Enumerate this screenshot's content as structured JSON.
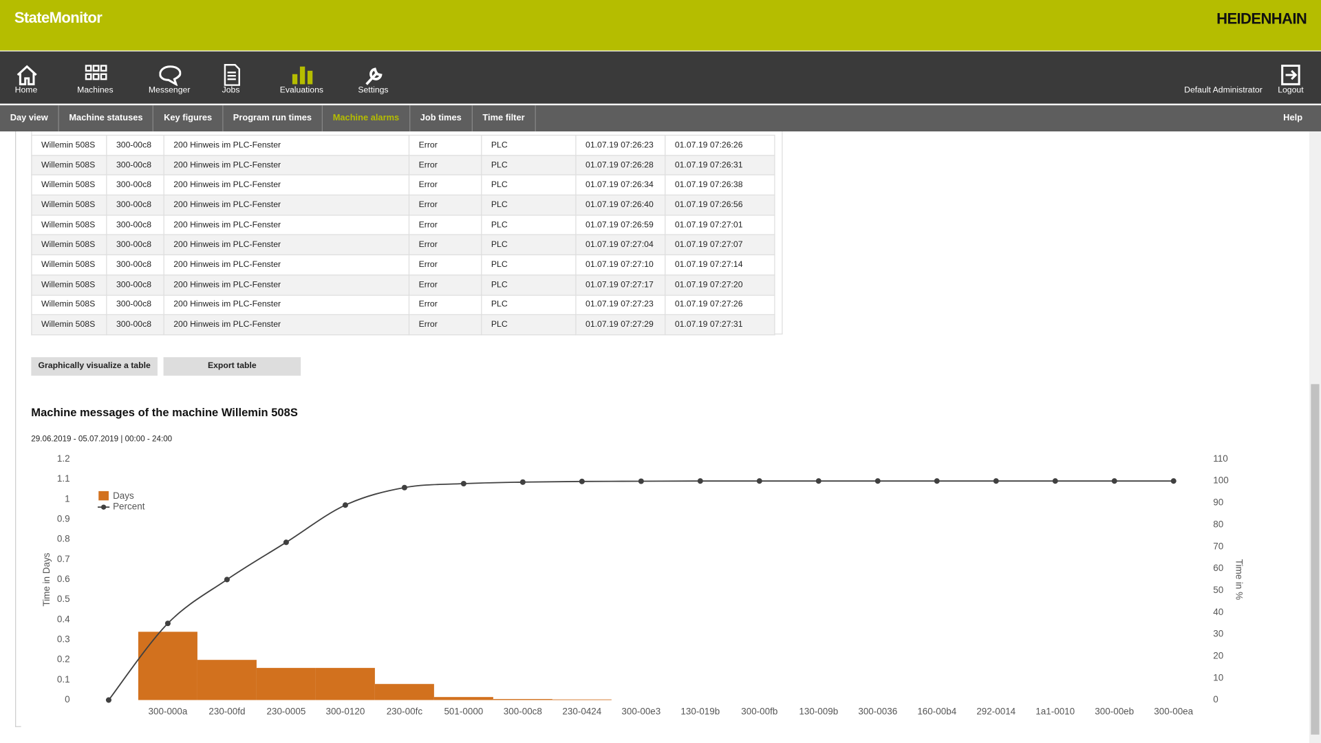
{
  "header": {
    "app_title": "StateMonitor",
    "brand": "HEIDENHAIN"
  },
  "nav": {
    "items": [
      "Home",
      "Machines",
      "Messenger",
      "Jobs",
      "Evaluations",
      "Settings"
    ],
    "active": 4,
    "user": "Default Administrator",
    "logout": "Logout"
  },
  "subnav": {
    "items": [
      "Day view",
      "Machine statuses",
      "Key figures",
      "Program run times",
      "Machine alarms",
      "Job times",
      "Time filter"
    ],
    "active": 4,
    "help": "Help"
  },
  "table": {
    "rows": [
      [
        "Willemin 508S",
        "300-00c8",
        "200 Hinweis im PLC-Fenster",
        "Error",
        "PLC",
        "01.07.19 07:26:23",
        "01.07.19 07:26:26"
      ],
      [
        "Willemin 508S",
        "300-00c8",
        "200 Hinweis im PLC-Fenster",
        "Error",
        "PLC",
        "01.07.19 07:26:28",
        "01.07.19 07:26:31"
      ],
      [
        "Willemin 508S",
        "300-00c8",
        "200 Hinweis im PLC-Fenster",
        "Error",
        "PLC",
        "01.07.19 07:26:34",
        "01.07.19 07:26:38"
      ],
      [
        "Willemin 508S",
        "300-00c8",
        "200 Hinweis im PLC-Fenster",
        "Error",
        "PLC",
        "01.07.19 07:26:40",
        "01.07.19 07:26:56"
      ],
      [
        "Willemin 508S",
        "300-00c8",
        "200 Hinweis im PLC-Fenster",
        "Error",
        "PLC",
        "01.07.19 07:26:59",
        "01.07.19 07:27:01"
      ],
      [
        "Willemin 508S",
        "300-00c8",
        "200 Hinweis im PLC-Fenster",
        "Error",
        "PLC",
        "01.07.19 07:27:04",
        "01.07.19 07:27:07"
      ],
      [
        "Willemin 508S",
        "300-00c8",
        "200 Hinweis im PLC-Fenster",
        "Error",
        "PLC",
        "01.07.19 07:27:10",
        "01.07.19 07:27:14"
      ],
      [
        "Willemin 508S",
        "300-00c8",
        "200 Hinweis im PLC-Fenster",
        "Error",
        "PLC",
        "01.07.19 07:27:17",
        "01.07.19 07:27:20"
      ],
      [
        "Willemin 508S",
        "300-00c8",
        "200 Hinweis im PLC-Fenster",
        "Error",
        "PLC",
        "01.07.19 07:27:23",
        "01.07.19 07:27:26"
      ],
      [
        "Willemin 508S",
        "300-00c8",
        "200 Hinweis im PLC-Fenster",
        "Error",
        "PLC",
        "01.07.19 07:27:29",
        "01.07.19 07:27:31"
      ]
    ]
  },
  "buttons": [
    "Graphically visualize a table",
    "Export table"
  ],
  "chart_data": {
    "type": "bar",
    "title": "Machine messages of the machine Willemin 508S",
    "subtitle": "29.06.2019 - 05.07.2019 | 00:00 - 24:00",
    "y_label": "Time in Days",
    "y2_label": "Time in %",
    "categories": [
      null,
      "300-000a",
      "230-00fd",
      "230-0005",
      "300-0120",
      "230-00fc",
      "501-0000",
      "300-00c8",
      "230-0424",
      "300-00e3",
      "130-019b",
      "300-00fb",
      "130-009b",
      "300-0036",
      "160-00b4",
      "292-0014",
      "1a1-0010",
      "300-00eb",
      "300-00ea"
    ],
    "series": [
      {
        "name": "Days",
        "color": "#d2711e",
        "values": [
          null,
          0.34,
          0.2,
          0.16,
          0.16,
          0.08,
          0.015,
          0.005,
          0.003,
          0,
          0,
          0,
          0,
          0,
          0,
          0,
          0,
          0,
          0
        ]
      },
      {
        "name": "Percent",
        "color": "#404040",
        "type": "line",
        "axis": "y2",
        "values": [
          0,
          35,
          55,
          72,
          89,
          97,
          98.8,
          99.5,
          99.8,
          99.9,
          100,
          100,
          100,
          100,
          100,
          100,
          100,
          100,
          100
        ]
      }
    ],
    "ylim": [
      0,
      1.2
    ],
    "yticks": [
      0,
      0.1,
      0.2,
      0.3,
      0.4,
      0.5,
      0.6,
      0.7,
      0.8,
      0.9,
      1,
      1.1,
      1.2
    ],
    "y2lim": [
      0,
      110
    ],
    "y2ticks": [
      0,
      10,
      20,
      30,
      40,
      50,
      60,
      70,
      80,
      90,
      100,
      110
    ],
    "grid": false,
    "legend": "top-left"
  }
}
